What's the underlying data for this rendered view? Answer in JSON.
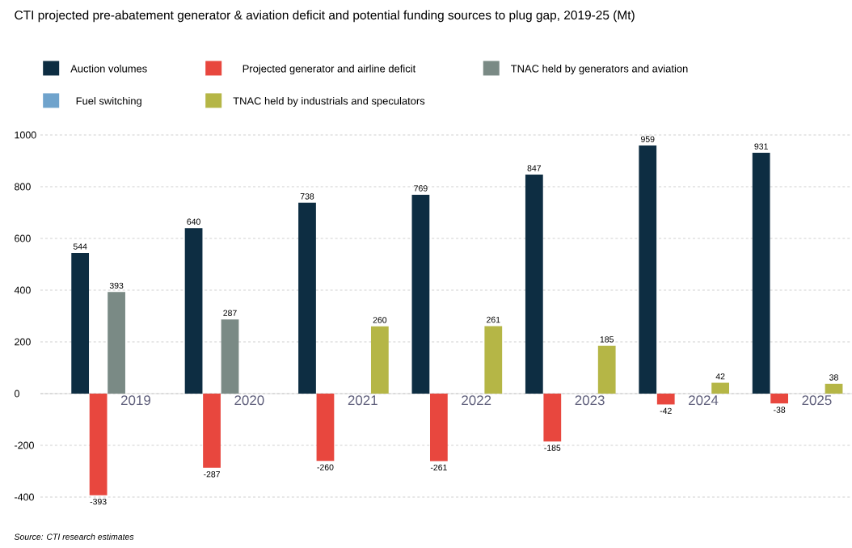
{
  "chart_data": {
    "type": "bar",
    "title": "CTI projected pre-abatement generator & aviation deficit and potential funding sources to plug gap, 2019-25 (Mt)",
    "categories": [
      "2019",
      "2020",
      "2021",
      "2022",
      "2023",
      "2024",
      "2025"
    ],
    "series": [
      {
        "name": "Auction volumes",
        "color": "#0d2d42",
        "values": [
          544,
          640,
          738,
          769,
          847,
          959,
          931
        ]
      },
      {
        "name": "Projected generator and airline deficit",
        "color": "#e8473e",
        "values": [
          -393,
          -287,
          -260,
          -261,
          -185,
          -42,
          -38
        ]
      },
      {
        "name": "TNAC held by generators and aviation",
        "color": "#7a8a85",
        "values": [
          393,
          287,
          null,
          null,
          null,
          null,
          null
        ]
      },
      {
        "name": "Fuel switching",
        "color": "#6fa3cc",
        "values": [
          null,
          null,
          null,
          null,
          null,
          null,
          null
        ]
      },
      {
        "name": "TNAC held by industrials and speculators",
        "color": "#b5b646",
        "values": [
          null,
          null,
          260,
          261,
          185,
          42,
          38
        ]
      }
    ],
    "ylim": [
      -400,
      1000
    ],
    "yticks": [
      -400,
      -200,
      0,
      200,
      400,
      600,
      800,
      1000
    ],
    "grid": "y",
    "legend": "top left",
    "data_labels": true,
    "annotations": [
      "Source: CTI research estimates"
    ]
  }
}
